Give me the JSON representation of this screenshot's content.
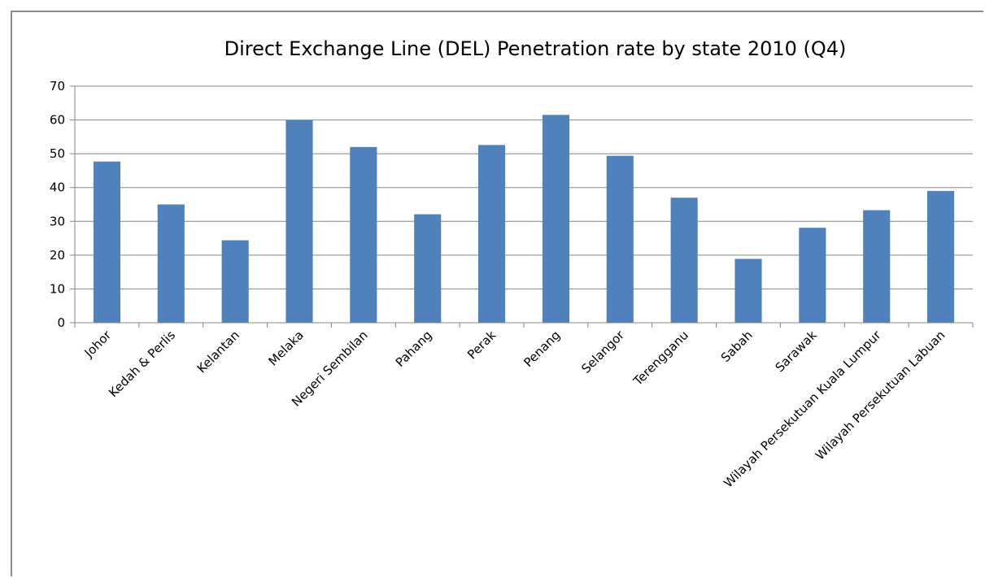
{
  "chart_data": {
    "type": "bar",
    "title": "Direct Exchange Line (DEL) Penetration rate by state 2010 (Q4)",
    "xlabel": "",
    "ylabel": "",
    "ylim": [
      0,
      70
    ],
    "yticks": [
      "0",
      "10",
      "20",
      "30",
      "40",
      "50",
      "60",
      "70"
    ],
    "grid": true,
    "legend": "none",
    "categories": [
      "Johor",
      "Kedah & Perlis",
      "Kelantan",
      "Melaka",
      "Negeri Sembilan",
      "Pahang",
      "Perak",
      "Penang",
      "Selangor",
      "Terengganu",
      "Sabah",
      "Sarawak",
      "Wilayah Persekutuan Kuala Lumpur",
      "Wilayah Persekutuan Labuan"
    ],
    "values": [
      47.7,
      35.0,
      24.4,
      59.9,
      52.0,
      32.1,
      52.6,
      61.5,
      49.4,
      37.0,
      18.9,
      28.1,
      33.3,
      39.0
    ],
    "colors": {
      "bar": "#4f81bd",
      "grid": "#868686",
      "axis": "#868686",
      "text": "#000000"
    }
  }
}
